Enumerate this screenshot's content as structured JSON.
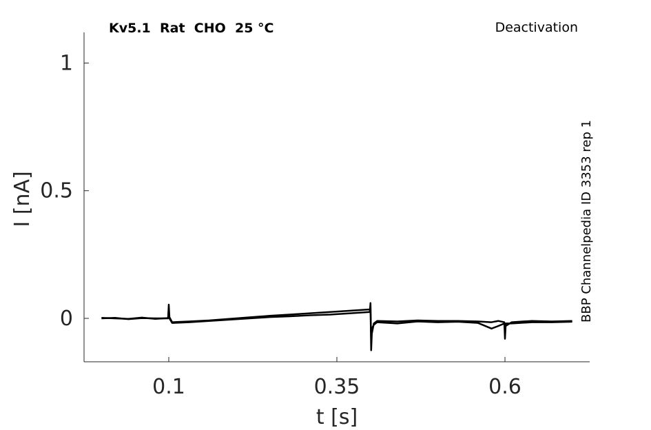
{
  "chart_data": {
    "type": "line",
    "title": "Kv5.1  Rat  CHO  25 °C",
    "subtitle": "Deactivation",
    "annotation": "BBP Channelpedia ID 3353 rep 1",
    "xlabel": "t [s]",
    "ylabel": "I [nA]",
    "x": [
      0,
      0.02,
      0.04,
      0.06,
      0.08,
      0.099,
      0.1,
      0.101,
      0.105,
      0.13,
      0.16,
      0.19,
      0.22,
      0.25,
      0.28,
      0.31,
      0.34,
      0.37,
      0.399,
      0.4,
      0.401,
      0.402,
      0.405,
      0.41,
      0.44,
      0.47,
      0.5,
      0.53,
      0.56,
      0.58,
      0.59,
      0.599,
      0.6,
      0.601,
      0.61,
      0.64,
      0.67,
      0.7
    ],
    "series": [
      {
        "color": "#000000",
        "values": [
          0,
          0.002,
          -0.003,
          0.001,
          0,
          0,
          0.054,
          0.005,
          -0.015,
          -0.012,
          -0.008,
          -0.002,
          0.004,
          0.01,
          0.015,
          0.02,
          0.025,
          0.03,
          0.035,
          0.045,
          -0.125,
          -0.06,
          -0.02,
          -0.01,
          -0.012,
          -0.008,
          -0.01,
          -0.01,
          -0.012,
          -0.015,
          -0.01,
          -0.015,
          -0.08,
          -0.03,
          -0.015,
          -0.01,
          -0.012,
          -0.01
        ]
      },
      {
        "color": "#000000",
        "values": [
          0.002,
          0,
          -0.002,
          0.003,
          -0.002,
          0.001,
          0.03,
          0,
          -0.018,
          -0.015,
          -0.01,
          -0.005,
          0,
          0.005,
          0.008,
          0.012,
          0.015,
          0.02,
          0.025,
          0.06,
          -0.09,
          -0.04,
          -0.025,
          -0.015,
          -0.02,
          -0.012,
          -0.015,
          -0.013,
          -0.018,
          -0.04,
          -0.03,
          -0.02,
          -0.05,
          -0.02,
          -0.02,
          -0.015,
          -0.015,
          -0.013
        ]
      }
    ],
    "xlim": [
      -0.026,
      0.726
    ],
    "ylim": [
      -0.17,
      1.12
    ],
    "xticks": [
      0.1,
      0.35,
      0.6
    ],
    "yticks": [
      0,
      0.5,
      1
    ]
  }
}
